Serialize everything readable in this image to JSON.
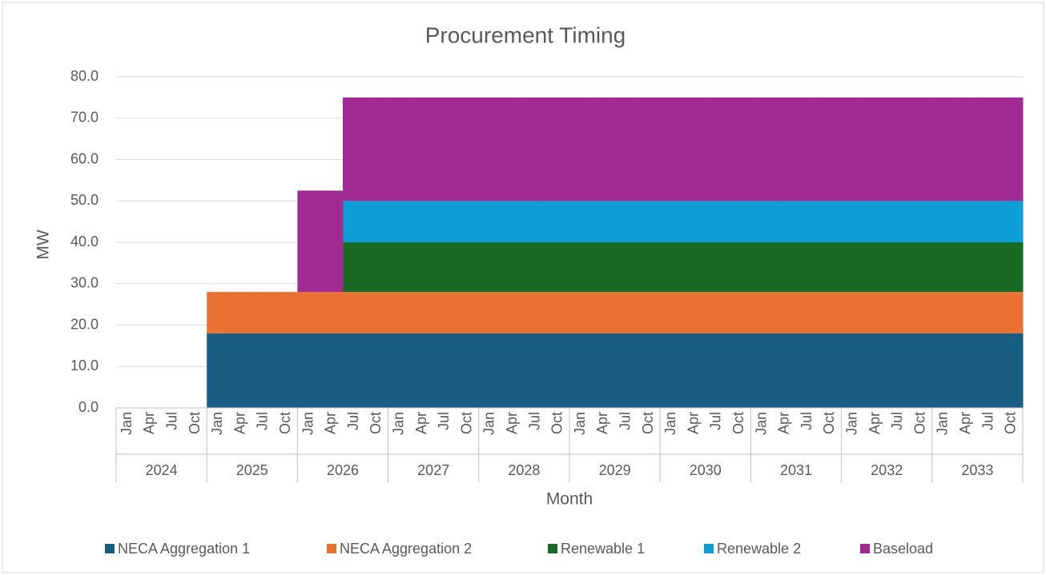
{
  "chart_data": {
    "type": "stacked_area",
    "title": "Procurement Timing",
    "x_label": "Month",
    "y_label": "MW",
    "categories": [
      "Jan",
      "Apr",
      "Jul",
      "Oct",
      "Jan",
      "Apr",
      "Jul",
      "Oct",
      "Jan",
      "Apr",
      "Jul",
      "Oct",
      "Jan",
      "Apr",
      "Jul",
      "Oct",
      "Jan",
      "Apr",
      "Jul",
      "Oct",
      "Jan",
      "Apr",
      "Jul",
      "Oct",
      "Jan",
      "Apr",
      "Jul",
      "Oct",
      "Jan",
      "Apr",
      "Jul",
      "Oct",
      "Jan",
      "Apr",
      "Jul",
      "Oct",
      "Jan",
      "Apr",
      "Jul",
      "Oct"
    ],
    "groups": [
      "2024",
      "2025",
      "2026",
      "2027",
      "2028",
      "2029",
      "2030",
      "2031",
      "2032",
      "2033"
    ],
    "series": [
      {
        "name": "NECA Aggregation 1",
        "color": "#175e82",
        "values": [
          0,
          0,
          0,
          0,
          18,
          18,
          18,
          18,
          18,
          18,
          18,
          18,
          18,
          18,
          18,
          18,
          18,
          18,
          18,
          18,
          18,
          18,
          18,
          18,
          18,
          18,
          18,
          18,
          18,
          18,
          18,
          18,
          18,
          18,
          18,
          18,
          18,
          18,
          18,
          18
        ]
      },
      {
        "name": "NECA Aggregation 2",
        "color": "#e97132",
        "values": [
          0,
          0,
          0,
          0,
          10,
          10,
          10,
          10,
          10,
          10,
          10,
          10,
          10,
          10,
          10,
          10,
          10,
          10,
          10,
          10,
          10,
          10,
          10,
          10,
          10,
          10,
          10,
          10,
          10,
          10,
          10,
          10,
          10,
          10,
          10,
          10,
          10,
          10,
          10,
          10
        ]
      },
      {
        "name": "Renewable 1",
        "color": "#196b24",
        "values": [
          0,
          0,
          0,
          0,
          0,
          0,
          0,
          0,
          0,
          0,
          12,
          12,
          12,
          12,
          12,
          12,
          12,
          12,
          12,
          12,
          12,
          12,
          12,
          12,
          12,
          12,
          12,
          12,
          12,
          12,
          12,
          12,
          12,
          12,
          12,
          12,
          12,
          12,
          12,
          12
        ]
      },
      {
        "name": "Renewable 2",
        "color": "#0f9ed5",
        "values": [
          0,
          0,
          0,
          0,
          0,
          0,
          0,
          0,
          0,
          0,
          10,
          10,
          10,
          10,
          10,
          10,
          10,
          10,
          10,
          10,
          10,
          10,
          10,
          10,
          10,
          10,
          10,
          10,
          10,
          10,
          10,
          10,
          10,
          10,
          10,
          10,
          10,
          10,
          10,
          10
        ]
      },
      {
        "name": "Baseload",
        "color": "#a02b93",
        "values": [
          0,
          0,
          0,
          0,
          0,
          0,
          0,
          0,
          24.5,
          24.5,
          25,
          25,
          25,
          25,
          25,
          25,
          25,
          25,
          25,
          25,
          25,
          25,
          25,
          25,
          25,
          25,
          25,
          25,
          25,
          25,
          25,
          25,
          25,
          25,
          25,
          25,
          25,
          25,
          25,
          25
        ]
      }
    ],
    "ylim": [
      0,
      80
    ],
    "yticks": [
      {
        "value": 0,
        "label": "0.0"
      },
      {
        "value": 10,
        "label": "10.0"
      },
      {
        "value": 20,
        "label": "20.0"
      },
      {
        "value": 30,
        "label": "30.0"
      },
      {
        "value": 40,
        "label": "40.0"
      },
      {
        "value": 50,
        "label": "50.0"
      },
      {
        "value": 60,
        "label": "60.0"
      },
      {
        "value": 70,
        "label": "70.0"
      },
      {
        "value": 80,
        "label": "80.0"
      }
    ],
    "grid": true,
    "legend": "bottom"
  }
}
